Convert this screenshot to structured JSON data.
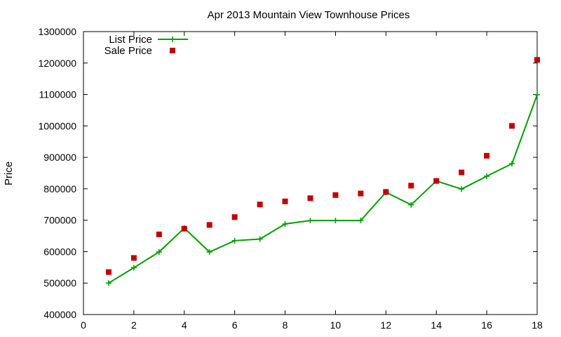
{
  "chart_data": {
    "type": "line",
    "title": "Apr 2013 Mountain View Townhouse Prices",
    "xlabel": "",
    "ylabel": "Price",
    "xlim": [
      0,
      18
    ],
    "ylim": [
      400000,
      1300000
    ],
    "xticks": [
      0,
      2,
      4,
      6,
      8,
      10,
      12,
      14,
      16,
      18
    ],
    "yticks": [
      400000,
      500000,
      600000,
      700000,
      800000,
      900000,
      1000000,
      1100000,
      1200000,
      1300000
    ],
    "grid": false,
    "legend_position": "top-left",
    "series": [
      {
        "name": "List Price",
        "style": "line-with-plus-markers",
        "color": "#00a000",
        "x": [
          1,
          2,
          3,
          4,
          5,
          6,
          7,
          8,
          9,
          10,
          11,
          12,
          13,
          14,
          15,
          16,
          17,
          18
        ],
        "values": [
          500000,
          549000,
          599000,
          675000,
          599000,
          635000,
          640000,
          688000,
          699000,
          699000,
          699000,
          789000,
          749000,
          825000,
          799000,
          840000,
          880000,
          1099000
        ]
      },
      {
        "name": "Sale Price",
        "style": "square-markers",
        "color": "#c00000",
        "x": [
          1,
          2,
          3,
          4,
          5,
          6,
          7,
          8,
          9,
          10,
          11,
          12,
          13,
          14,
          15,
          16,
          17,
          18
        ],
        "values": [
          535000,
          580000,
          655000,
          673000,
          685000,
          710000,
          750000,
          760000,
          770000,
          780000,
          785000,
          790000,
          810000,
          825000,
          852000,
          905000,
          1000000,
          1210000
        ]
      }
    ]
  }
}
